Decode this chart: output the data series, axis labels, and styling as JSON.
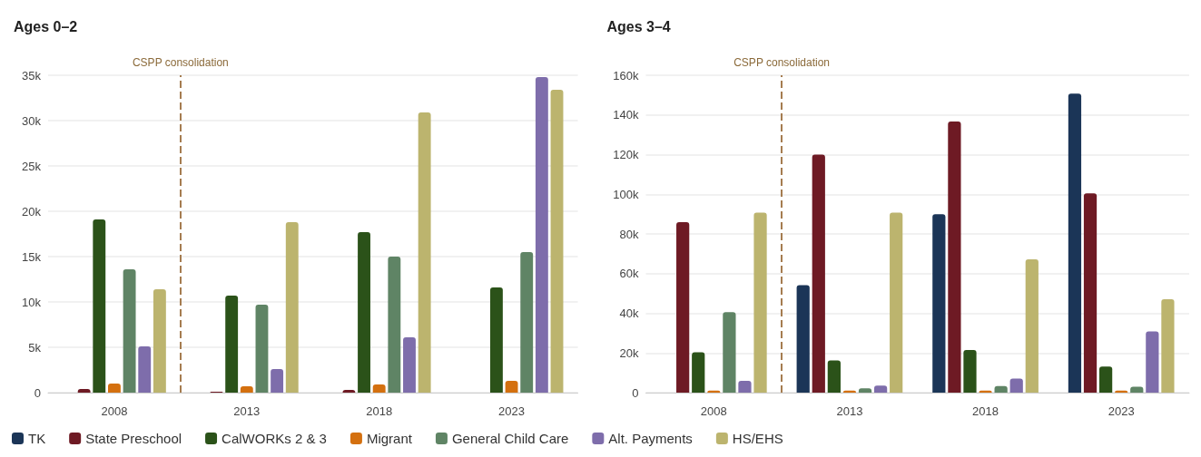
{
  "chart_data": [
    {
      "type": "bar",
      "title": "Ages 0–2",
      "x": [
        2008,
        2013,
        2018,
        2023
      ],
      "xlim": [
        2005.5,
        2025.5
      ],
      "xticks": [
        2008,
        2013,
        2018,
        2023
      ],
      "ylim": [
        0,
        35000
      ],
      "yticks": [
        0,
        {
          "value": 5000,
          "label": "5k"
        },
        {
          "value": 10000,
          "label": "10k"
        },
        {
          "value": 15000,
          "label": "15k"
        },
        {
          "value": 20000,
          "label": "20k"
        },
        {
          "value": 25000,
          "label": "25k"
        },
        {
          "value": 30000,
          "label": "30k"
        },
        {
          "value": 35000,
          "label": "35k"
        }
      ],
      "grid": "y",
      "ref_lines": [
        {
          "axis": "x",
          "value": 2010.5,
          "label": "CSPP consolidation",
          "color": "#a57c50",
          "line_style": "dashed"
        }
      ],
      "series": [
        {
          "color": "#1b3557",
          "values": [
            null,
            null,
            null,
            null
          ]
        },
        {
          "color": "#6e1a24",
          "values": [
            400,
            100,
            300,
            null
          ]
        },
        {
          "color": "#2b5219",
          "values": [
            19100,
            10700,
            17700,
            11600
          ]
        },
        {
          "color": "#d4700f",
          "values": [
            1000,
            700,
            900,
            1300
          ]
        },
        {
          "color": "#5f8465",
          "values": [
            13600,
            9700,
            15000,
            15500
          ]
        },
        {
          "color": "#7e6dab",
          "values": [
            5100,
            2600,
            6100,
            34800
          ]
        },
        {
          "color": "#bcb46e",
          "values": [
            11400,
            18800,
            30900,
            33400
          ]
        }
      ]
    },
    {
      "type": "bar",
      "title": "Ages 3–4",
      "x": [
        2008,
        2013,
        2018,
        2023
      ],
      "xlim": [
        2005.5,
        2025.5
      ],
      "xticks": [
        2008,
        2013,
        2018,
        2023
      ],
      "ylim": [
        0,
        160000
      ],
      "yticks": [
        0,
        {
          "value": 20000,
          "label": "20k"
        },
        {
          "value": 40000,
          "label": "40k"
        },
        {
          "value": 60000,
          "label": "60k"
        },
        {
          "value": 80000,
          "label": "80k"
        },
        {
          "value": 100000,
          "label": "100k"
        },
        {
          "value": 120000,
          "label": "120k"
        },
        {
          "value": 140000,
          "label": "140k"
        },
        {
          "value": 160000,
          "label": "160k"
        }
      ],
      "grid": "y",
      "legend": "bottom",
      "ref_lines": [
        {
          "axis": "x",
          "value": 2010.5,
          "label": "CSPP consolidation",
          "color": "#a57c50",
          "line_style": "dashed"
        }
      ],
      "series": [
        {
          "name": "TK",
          "color": "#1b3557",
          "values": [
            null,
            54200,
            90000,
            150700
          ]
        },
        {
          "name": "State Preschool",
          "color": "#6e1a24",
          "values": [
            86000,
            120000,
            136700,
            100500
          ]
        },
        {
          "name": "CalWORKs 2 & 3",
          "color": "#2b5219",
          "values": [
            20300,
            16200,
            21500,
            13200
          ]
        },
        {
          "name": "Migrant",
          "color": "#d4700f",
          "values": [
            1000,
            1000,
            1000,
            1000
          ]
        },
        {
          "name": "General Child Care",
          "color": "#5f8465",
          "values": [
            40600,
            2200,
            3300,
            3000
          ]
        },
        {
          "name": "Alt. Payments",
          "color": "#7e6dab",
          "values": [
            5900,
            3500,
            7100,
            30900
          ]
        },
        {
          "name": "HS/EHS",
          "color": "#bcb46e",
          "values": [
            90800,
            90800,
            67200,
            47100
          ]
        }
      ]
    }
  ]
}
